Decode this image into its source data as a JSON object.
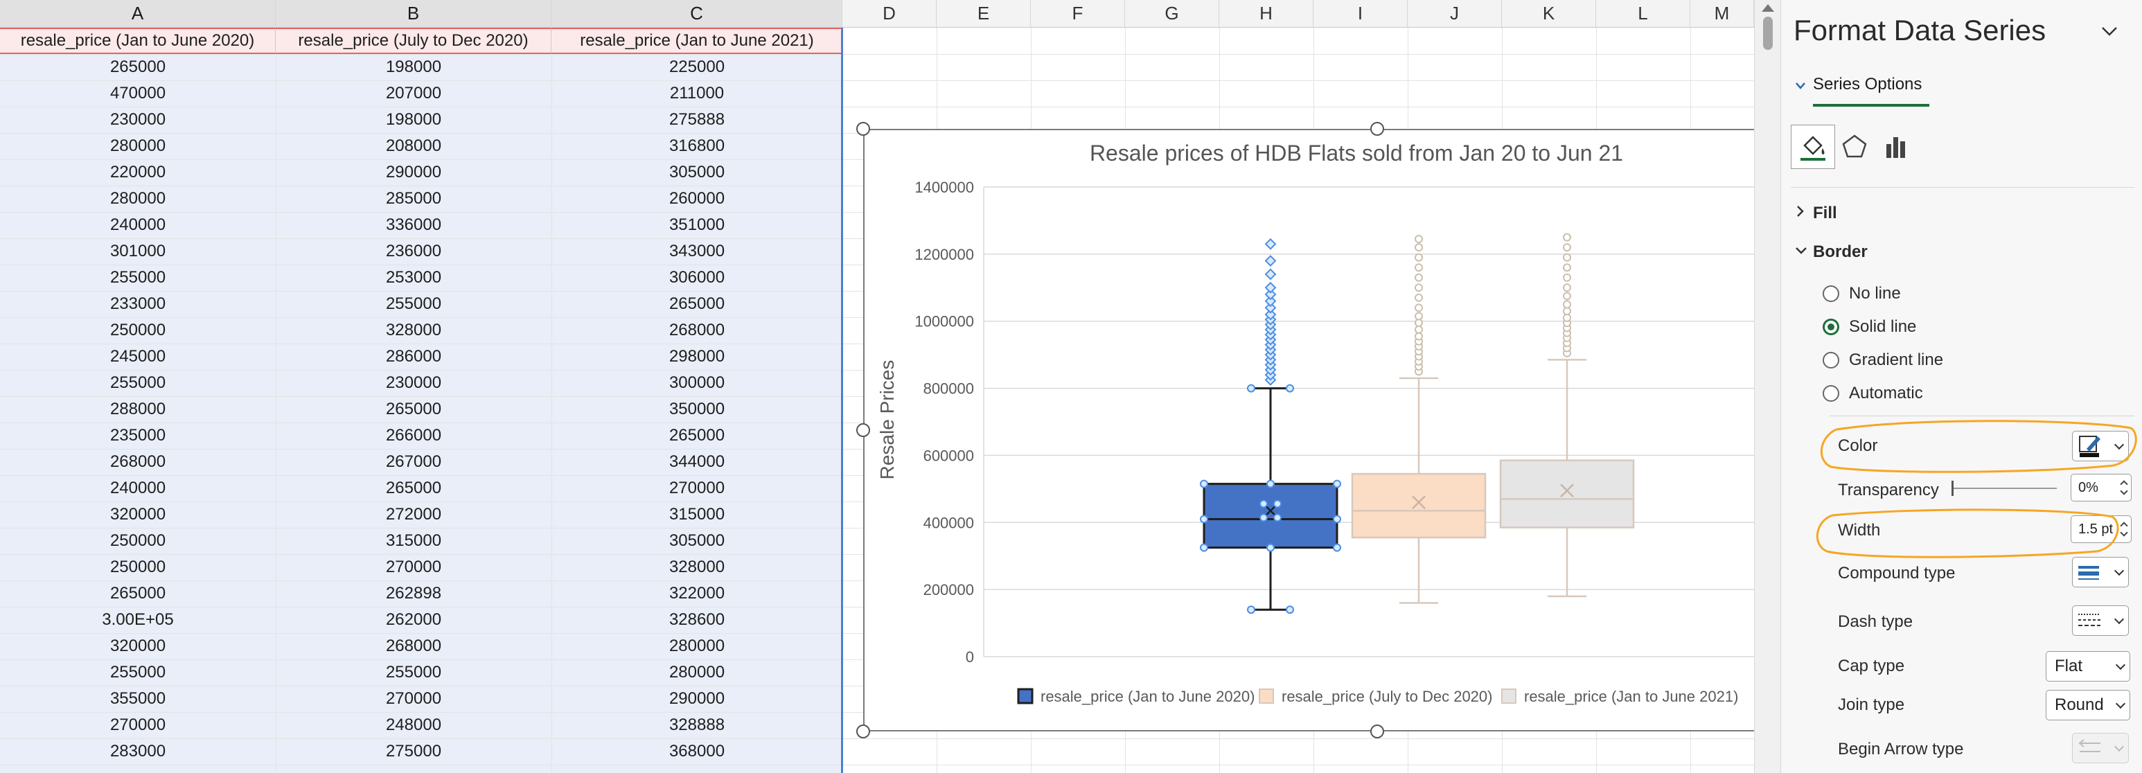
{
  "sheet": {
    "columns": [
      "A",
      "B",
      "C",
      "D",
      "E",
      "F",
      "G",
      "H",
      "I",
      "J",
      "K",
      "L",
      "M"
    ],
    "headers": [
      "resale_price (Jan to June 2020)",
      "resale_price (July to Dec 2020)",
      "resale_price (Jan to June 2021)"
    ],
    "rows": [
      [
        "265000",
        "198000",
        "225000"
      ],
      [
        "470000",
        "207000",
        "211000"
      ],
      [
        "230000",
        "198000",
        "275888"
      ],
      [
        "280000",
        "208000",
        "316800"
      ],
      [
        "220000",
        "290000",
        "305000"
      ],
      [
        "280000",
        "285000",
        "260000"
      ],
      [
        "240000",
        "336000",
        "351000"
      ],
      [
        "301000",
        "236000",
        "343000"
      ],
      [
        "255000",
        "253000",
        "306000"
      ],
      [
        "233000",
        "255000",
        "265000"
      ],
      [
        "250000",
        "328000",
        "268000"
      ],
      [
        "245000",
        "286000",
        "298000"
      ],
      [
        "255000",
        "230000",
        "300000"
      ],
      [
        "288000",
        "265000",
        "350000"
      ],
      [
        "235000",
        "266000",
        "265000"
      ],
      [
        "268000",
        "267000",
        "344000"
      ],
      [
        "240000",
        "265000",
        "270000"
      ],
      [
        "320000",
        "272000",
        "315000"
      ],
      [
        "250000",
        "315000",
        "305000"
      ],
      [
        "250000",
        "270000",
        "328000"
      ],
      [
        "265000",
        "262898",
        "322000"
      ],
      [
        "3.00E+05",
        "262000",
        "328600"
      ],
      [
        "320000",
        "268000",
        "280000"
      ],
      [
        "255000",
        "255000",
        "280000"
      ],
      [
        "355000",
        "270000",
        "290000"
      ],
      [
        "270000",
        "248000",
        "328888"
      ],
      [
        "283000",
        "275000",
        "368000"
      ]
    ]
  },
  "chart_data": {
    "type": "box",
    "title": "Resale prices of HDB Flats sold from Jan 20 to Jun 21",
    "ylabel": "Resale Prices",
    "xlabel": "",
    "ylim": [
      0,
      1400000
    ],
    "yticks": [
      0,
      200000,
      400000,
      600000,
      800000,
      1000000,
      1200000,
      1400000
    ],
    "ytick_labels": [
      "0",
      "200000",
      "400000",
      "600000",
      "800000",
      "1000000",
      "1200000",
      "1400000"
    ],
    "grid": true,
    "legend_position": "bottom",
    "series": [
      {
        "name": "resale_price (Jan to June 2020)",
        "color": "#4472c4",
        "border": "#1f1f1f",
        "whisker_low": 140000,
        "q1": 325000,
        "median": 410000,
        "q3": 515000,
        "whisker_high": 800000,
        "mean": 435000,
        "outliers": [
          825000,
          840000,
          855000,
          870000,
          885000,
          900000,
          915000,
          930000,
          945000,
          960000,
          975000,
          990000,
          1005000,
          1020000,
          1040000,
          1060000,
          1080000,
          1100000,
          1140000,
          1180000,
          1230000
        ]
      },
      {
        "name": "resale_price (July to Dec 2020)",
        "color": "#fbdcc4",
        "border": "#d7c8bb",
        "whisker_low": 160000,
        "q1": 355000,
        "median": 435000,
        "q3": 545000,
        "whisker_high": 830000,
        "mean": 460000,
        "outliers": [
          850000,
          865000,
          880000,
          895000,
          910000,
          925000,
          940000,
          955000,
          975000,
          995000,
          1015000,
          1040000,
          1070000,
          1100000,
          1130000,
          1160000,
          1190000,
          1220000,
          1245000
        ]
      },
      {
        "name": "resale_price (Jan to June 2021)",
        "color": "#e5e5e5",
        "border": "#d7c8bb",
        "whisker_low": 180000,
        "q1": 385000,
        "median": 470000,
        "q3": 585000,
        "whisker_high": 885000,
        "mean": 495000,
        "outliers": [
          905000,
          920000,
          935000,
          950000,
          965000,
          980000,
          995000,
          1010000,
          1030000,
          1050000,
          1075000,
          1100000,
          1130000,
          1160000,
          1190000,
          1220000,
          1250000
        ]
      }
    ]
  },
  "pane": {
    "title": "Format Data Series",
    "tab_label": "Series Options",
    "fill_label": "Fill",
    "border_label": "Border",
    "radios": [
      "No line",
      "Solid line",
      "Gradient line",
      "Automatic"
    ],
    "selected_radio": 1,
    "color_label": "Color",
    "transparency_label": "Transparency",
    "transparency_value": "0%",
    "width_label": "Width",
    "width_value": "1.5 pt",
    "compound_label": "Compound type",
    "dash_label": "Dash type",
    "cap_label": "Cap type",
    "cap_value": "Flat",
    "join_label": "Join type",
    "join_value": "Round",
    "arrow_label": "Begin Arrow type",
    "accent_color": "#1e6e3a",
    "highlight_color": "#f5a623"
  }
}
